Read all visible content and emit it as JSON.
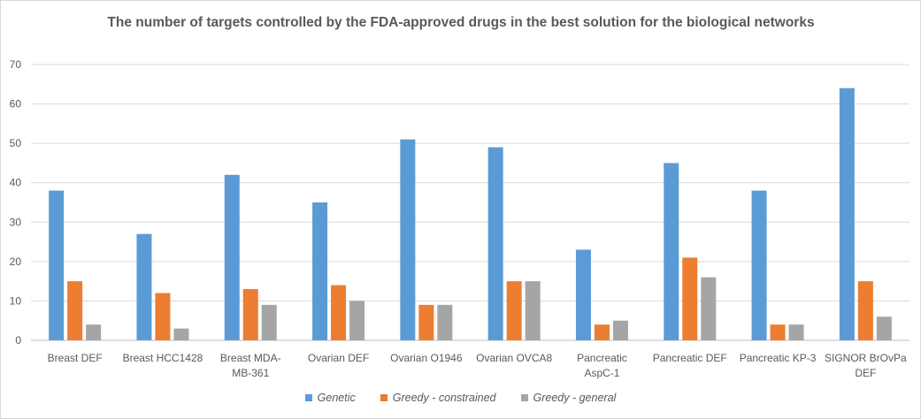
{
  "chart_data": {
    "type": "bar",
    "title": "The number of targets controlled by the FDA-approved drugs in the best solution for the biological networks",
    "categories": [
      [
        "Breast DEF"
      ],
      [
        "Breast HCC1428"
      ],
      [
        "Breast MDA-",
        "MB-361"
      ],
      [
        "Ovarian DEF"
      ],
      [
        "Ovarian O1946"
      ],
      [
        "Ovarian OVCA8"
      ],
      [
        "Pancreatic",
        "AspC-1"
      ],
      [
        "Pancreatic DEF"
      ],
      [
        "Pancreatic KP-3"
      ],
      [
        "SIGNOR BrOvPa",
        "DEF"
      ]
    ],
    "series": [
      {
        "name": "Genetic",
        "color": "#5b9bd5",
        "values": [
          38,
          27,
          42,
          35,
          51,
          49,
          23,
          45,
          38,
          64
        ]
      },
      {
        "name": "Greedy - constrained",
        "color": "#ed7d31",
        "values": [
          15,
          12,
          13,
          14,
          9,
          15,
          4,
          21,
          4,
          15
        ]
      },
      {
        "name": "Greedy - general",
        "color": "#a5a5a5",
        "values": [
          4,
          3,
          9,
          10,
          9,
          15,
          5,
          16,
          4,
          6
        ]
      }
    ],
    "ylim": [
      0,
      70
    ],
    "yticks": [
      0,
      10,
      20,
      30,
      40,
      50,
      60,
      70
    ],
    "grid": true,
    "legend_position": "bottom"
  }
}
